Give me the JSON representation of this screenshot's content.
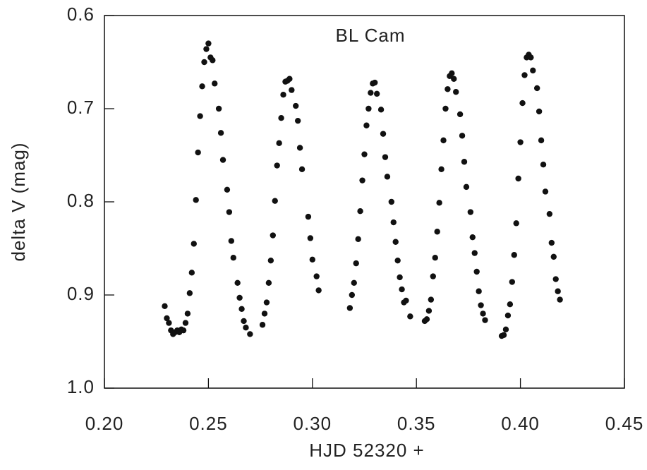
{
  "chart_data": {
    "type": "scatter",
    "title": "BL Cam",
    "xlabel": "HJD 52320 +",
    "ylabel": "delta V (mag)",
    "xlim": [
      0.2,
      0.45
    ],
    "ylim": [
      0.6,
      1.0
    ],
    "y_inverted": true,
    "color": "#111111",
    "xticks": [
      {
        "value": 0.2,
        "label": "0.20"
      },
      0.25,
      {
        "value": 0.3,
        "label": "0.30"
      },
      0.35,
      {
        "value": 0.4,
        "label": "0.40"
      },
      0.45
    ],
    "yticks": [
      0.6,
      0.7,
      0.8,
      0.9,
      {
        "value": 1,
        "label": "1.0"
      }
    ],
    "x": [
      0.229,
      0.23,
      0.231,
      0.232,
      0.233,
      0.234,
      0.235,
      0.236,
      0.237,
      0.238,
      0.239,
      0.24,
      0.241,
      0.242,
      0.243,
      0.244,
      0.245,
      0.246,
      0.247,
      0.248,
      0.249,
      0.25,
      0.251,
      0.252,
      0.253,
      0.255,
      0.256,
      0.257,
      0.259,
      0.26,
      0.261,
      0.262,
      0.264,
      0.265,
      0.266,
      0.267,
      0.268,
      0.27,
      0.276,
      0.277,
      0.278,
      0.279,
      0.28,
      0.281,
      0.282,
      0.283,
      0.284,
      0.285,
      0.286,
      0.287,
      0.288,
      0.289,
      0.29,
      0.292,
      0.293,
      0.294,
      0.295,
      0.298,
      0.299,
      0.3,
      0.302,
      0.303,
      0.318,
      0.319,
      0.32,
      0.321,
      0.322,
      0.323,
      0.324,
      0.325,
      0.326,
      0.327,
      0.328,
      0.329,
      0.33,
      0.331,
      0.333,
      0.334,
      0.335,
      0.336,
      0.338,
      0.339,
      0.34,
      0.341,
      0.342,
      0.343,
      0.344,
      0.345,
      0.347,
      0.354,
      0.355,
      0.356,
      0.357,
      0.358,
      0.359,
      0.36,
      0.361,
      0.362,
      0.363,
      0.364,
      0.365,
      0.366,
      0.367,
      0.368,
      0.369,
      0.371,
      0.372,
      0.373,
      0.374,
      0.376,
      0.377,
      0.378,
      0.379,
      0.38,
      0.381,
      0.382,
      0.383,
      0.391,
      0.392,
      0.393,
      0.394,
      0.395,
      0.396,
      0.397,
      0.398,
      0.399,
      0.4,
      0.401,
      0.402,
      0.403,
      0.404,
      0.405,
      0.406,
      0.408,
      0.409,
      0.41,
      0.411,
      0.412,
      0.414,
      0.415,
      0.416,
      0.417,
      0.418,
      0.419
    ],
    "values": [
      0.912,
      0.925,
      0.93,
      0.938,
      0.942,
      0.94,
      0.938,
      0.94,
      0.937,
      0.938,
      0.93,
      0.92,
      0.898,
      0.876,
      0.845,
      0.798,
      0.747,
      0.708,
      0.676,
      0.65,
      0.636,
      0.63,
      0.645,
      0.648,
      0.673,
      0.7,
      0.726,
      0.755,
      0.787,
      0.811,
      0.842,
      0.86,
      0.887,
      0.903,
      0.915,
      0.928,
      0.935,
      0.942,
      0.932,
      0.92,
      0.908,
      0.887,
      0.863,
      0.836,
      0.799,
      0.761,
      0.737,
      0.71,
      0.685,
      0.671,
      0.67,
      0.668,
      0.68,
      0.697,
      0.713,
      0.742,
      0.765,
      0.816,
      0.839,
      0.862,
      0.88,
      0.895,
      0.914,
      0.9,
      0.887,
      0.866,
      0.84,
      0.81,
      0.777,
      0.749,
      0.718,
      0.7,
      0.683,
      0.673,
      0.672,
      0.684,
      0.701,
      0.727,
      0.752,
      0.773,
      0.8,
      0.822,
      0.843,
      0.863,
      0.881,
      0.894,
      0.908,
      0.906,
      0.923,
      0.928,
      0.926,
      0.917,
      0.905,
      0.88,
      0.86,
      0.832,
      0.801,
      0.765,
      0.734,
      0.7,
      0.679,
      0.665,
      0.662,
      0.668,
      0.682,
      0.706,
      0.729,
      0.757,
      0.784,
      0.811,
      0.838,
      0.855,
      0.875,
      0.896,
      0.911,
      0.92,
      0.927,
      0.944,
      0.943,
      0.937,
      0.922,
      0.91,
      0.886,
      0.857,
      0.823,
      0.775,
      0.736,
      0.694,
      0.664,
      0.645,
      0.642,
      0.645,
      0.659,
      0.678,
      0.703,
      0.734,
      0.76,
      0.789,
      0.813,
      0.844,
      0.859,
      0.883,
      0.896,
      0.905
    ]
  }
}
